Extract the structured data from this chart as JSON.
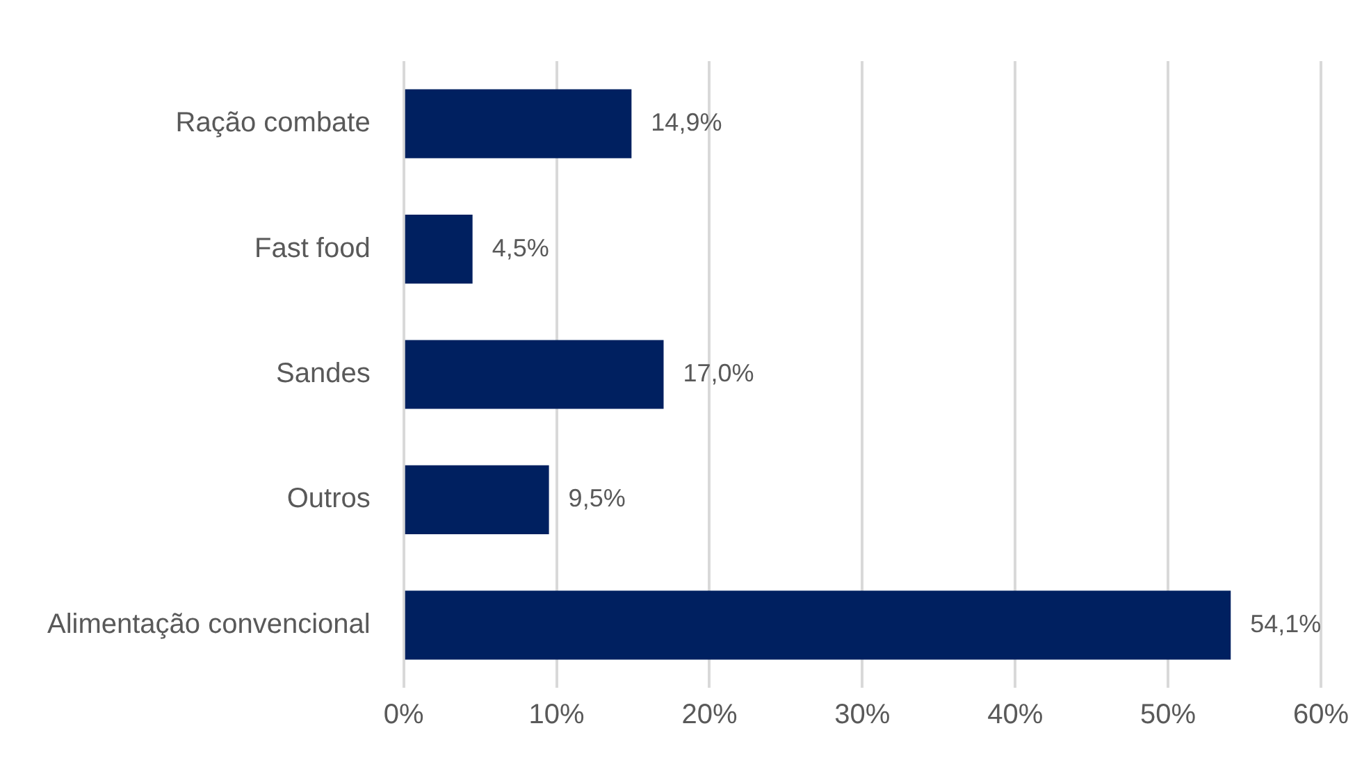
{
  "chart_data": {
    "type": "bar",
    "orientation": "horizontal",
    "categories": [
      "Ração combate",
      "Fast food",
      "Sandes",
      "Outros",
      "Alimentação convencional"
    ],
    "values": [
      14.9,
      4.5,
      17.0,
      9.5,
      54.1
    ],
    "value_labels": [
      "14,9%",
      "4,5%",
      "17,0%",
      "9,5%",
      "54,1%"
    ],
    "color": "#002060",
    "xlim": [
      0,
      60
    ],
    "xticks": [
      {
        "value": 0,
        "label": "0%"
      },
      {
        "value": 10,
        "label": "10%"
      },
      {
        "value": 20,
        "label": "20%"
      },
      {
        "value": 30,
        "label": "30%"
      },
      {
        "value": 40,
        "label": "40%"
      },
      {
        "value": 50,
        "label": "50%"
      },
      {
        "value": 60,
        "label": "60%"
      }
    ],
    "grid": "x",
    "legend": false
  }
}
